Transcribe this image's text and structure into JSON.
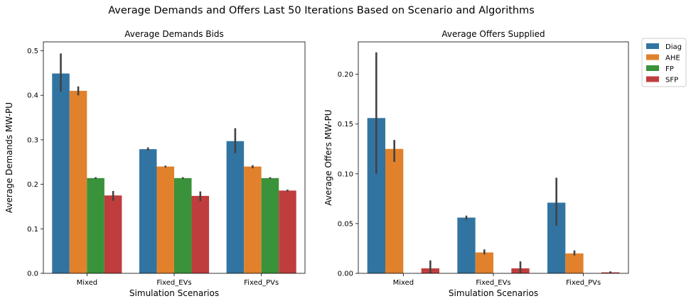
{
  "figure": {
    "suptitle": "Average Demands and Offers Last 50 Iterations Based on Scenario and Algorithms"
  },
  "legend": {
    "placement": "outside-right-top",
    "entries": [
      {
        "label": "Diag",
        "color": "#3274a1"
      },
      {
        "label": "AHE",
        "color": "#e1812c"
      },
      {
        "label": "FP",
        "color": "#3a923a"
      },
      {
        "label": "SFP",
        "color": "#c03d3e"
      }
    ]
  },
  "chart_data": [
    {
      "type": "bar",
      "title": "Average Demands Bids",
      "xlabel": "Simulation Scenarios",
      "ylabel": "Average Demands MW-PU",
      "categories": [
        "Mixed",
        "Fixed_EVs",
        "Fixed_PVs"
      ],
      "ylim": [
        0,
        0.52
      ],
      "yticks": [
        0.0,
        0.1,
        0.2,
        0.3,
        0.4,
        0.5
      ],
      "ytick_labels": [
        "0.0",
        "0.1",
        "0.2",
        "0.3",
        "0.4",
        "0.5"
      ],
      "grid": false,
      "series": [
        {
          "name": "Diag",
          "values": [
            0.449,
            0.279,
            0.297
          ],
          "err_low": [
            0.408,
            0.276,
            0.27
          ],
          "err_high": [
            0.494,
            0.283,
            0.326
          ]
        },
        {
          "name": "AHE",
          "values": [
            0.41,
            0.24,
            0.24
          ],
          "err_low": [
            0.4,
            0.238,
            0.236
          ],
          "err_high": [
            0.42,
            0.242,
            0.243
          ]
        },
        {
          "name": "FP",
          "values": [
            0.214,
            0.214,
            0.214
          ],
          "err_low": [
            0.212,
            0.212,
            0.212
          ],
          "err_high": [
            0.216,
            0.216,
            0.216
          ]
        },
        {
          "name": "SFP",
          "values": [
            0.175,
            0.174,
            0.186
          ],
          "err_low": [
            0.163,
            0.162,
            0.184
          ],
          "err_high": [
            0.185,
            0.184,
            0.188
          ]
        }
      ]
    },
    {
      "type": "bar",
      "title": "Average Offers Supplied",
      "xlabel": "Simulation Scenarios",
      "ylabel": "Average Offers MW-PU",
      "categories": [
        "Mixed",
        "Fixed_EVs",
        "Fixed_PVs"
      ],
      "ylim": [
        0,
        0.2325
      ],
      "yticks": [
        0.0,
        0.05,
        0.1,
        0.15,
        0.2
      ],
      "ytick_labels": [
        "0.00",
        "0.05",
        "0.10",
        "0.15",
        "0.20"
      ],
      "grid": false,
      "series": [
        {
          "name": "Diag",
          "values": [
            0.156,
            0.056,
            0.071
          ],
          "err_low": [
            0.1,
            0.054,
            0.048
          ],
          "err_high": [
            0.222,
            0.058,
            0.096
          ]
        },
        {
          "name": "AHE",
          "values": [
            0.125,
            0.021,
            0.02
          ],
          "err_low": [
            0.112,
            0.019,
            0.018
          ],
          "err_high": [
            0.134,
            0.024,
            0.023
          ]
        },
        {
          "name": "FP",
          "values": [
            0.0,
            0.0,
            0.0
          ],
          "err_low": [
            0.0,
            0.0,
            0.0
          ],
          "err_high": [
            0.0,
            0.0,
            0.0
          ]
        },
        {
          "name": "SFP",
          "values": [
            0.005,
            0.005,
            0.001
          ],
          "err_low": [
            0.0,
            0.0,
            0.0
          ],
          "err_high": [
            0.013,
            0.012,
            0.002
          ]
        }
      ]
    }
  ]
}
